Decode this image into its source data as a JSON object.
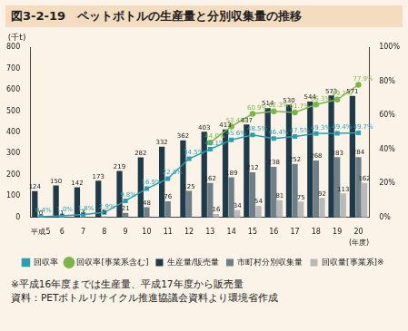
{
  "chart_data": {
    "type": "bar",
    "title": "図3-2-19　ペットボトルの生産量と分別収集量の推移",
    "annotations": [
      "※平成16年度までは生産量、平成17年度から販売量",
      "資料：PETボトルリサイクル推進協議会資料より環境省作成"
    ],
    "categories": [
      "平成5",
      "6",
      "7",
      "8",
      "9",
      "10",
      "11",
      "12",
      "13",
      "14",
      "15",
      "16",
      "17",
      "18",
      "19",
      "20"
    ],
    "x_label": "(年度)",
    "y_label": "(千t)",
    "ylim": [
      0,
      800
    ],
    "yticks": [
      0,
      100,
      200,
      300,
      400,
      500,
      600,
      700,
      800
    ],
    "y2lim": [
      0,
      100
    ],
    "y2ticks": [
      {
        "value": 0,
        "label": "0%"
      },
      {
        "value": 20,
        "label": "20%"
      },
      {
        "value": 40,
        "label": "40%"
      },
      {
        "value": 60,
        "label": "60%"
      },
      {
        "value": 80,
        "label": "80%"
      },
      {
        "value": 100,
        "label": "100%"
      }
    ],
    "grid": false,
    "legend": "bottom",
    "data_labels": true,
    "series": [
      {
        "name": "生産量/販売量",
        "type": "bar",
        "color": "#1f3b4a",
        "values": [
          124,
          150,
          142,
          173,
          219,
          282,
          332,
          362,
          403,
          413,
          437,
          514,
          530,
          544,
          573,
          571
        ]
      },
      {
        "name": "市町村分別収集量",
        "type": "bar",
        "color": "#6f7f88",
        "values": [
          0,
          1,
          3,
          5,
          21,
          48,
          76,
          125,
          162,
          189,
          212,
          238,
          252,
          268,
          283,
          284
        ]
      },
      {
        "name": "回収量[事業系]※",
        "type": "bar",
        "color": "#b9b9b9",
        "values": [
          null,
          null,
          null,
          null,
          null,
          null,
          null,
          null,
          16,
          34,
          54,
          81,
          75,
          92,
          113,
          162
        ]
      },
      {
        "name": "回収率",
        "type": "line",
        "axis": "y2",
        "color": "#2a9fb2",
        "marker": "square",
        "values": [
          0.4,
          1.0,
          1.8,
          2.9,
          9.8,
          16.9,
          22.8,
          34.5,
          40.1,
          45.6,
          48.5,
          46.4,
          47.5,
          49.3,
          49.4,
          49.7
        ],
        "value_labels": [
          "0.4%",
          "1.0%",
          "1.8%",
          "2.9%",
          "9.8%",
          "16.9%",
          "22.8%",
          "34.5%",
          "40.1%",
          "45.6%",
          "48.5%",
          "46.4%",
          "47.5%",
          "49.3%",
          "49.4%",
          "49.7%"
        ]
      },
      {
        "name": "回収率[事業系含む]",
        "type": "line",
        "axis": "y2",
        "color": "#7ab648",
        "marker": "circle",
        "values": [
          null,
          null,
          null,
          null,
          null,
          null,
          null,
          null,
          44.0,
          53.4,
          60.9,
          62.3,
          61.7,
          66.3,
          69.2,
          77.9
        ],
        "value_labels": [
          null,
          null,
          null,
          null,
          null,
          null,
          null,
          null,
          "44.0%",
          "53.4%",
          "60.9%",
          "62.3%",
          "61.7%",
          "66.3%",
          "69.2%",
          "77.9%"
        ]
      }
    ]
  }
}
